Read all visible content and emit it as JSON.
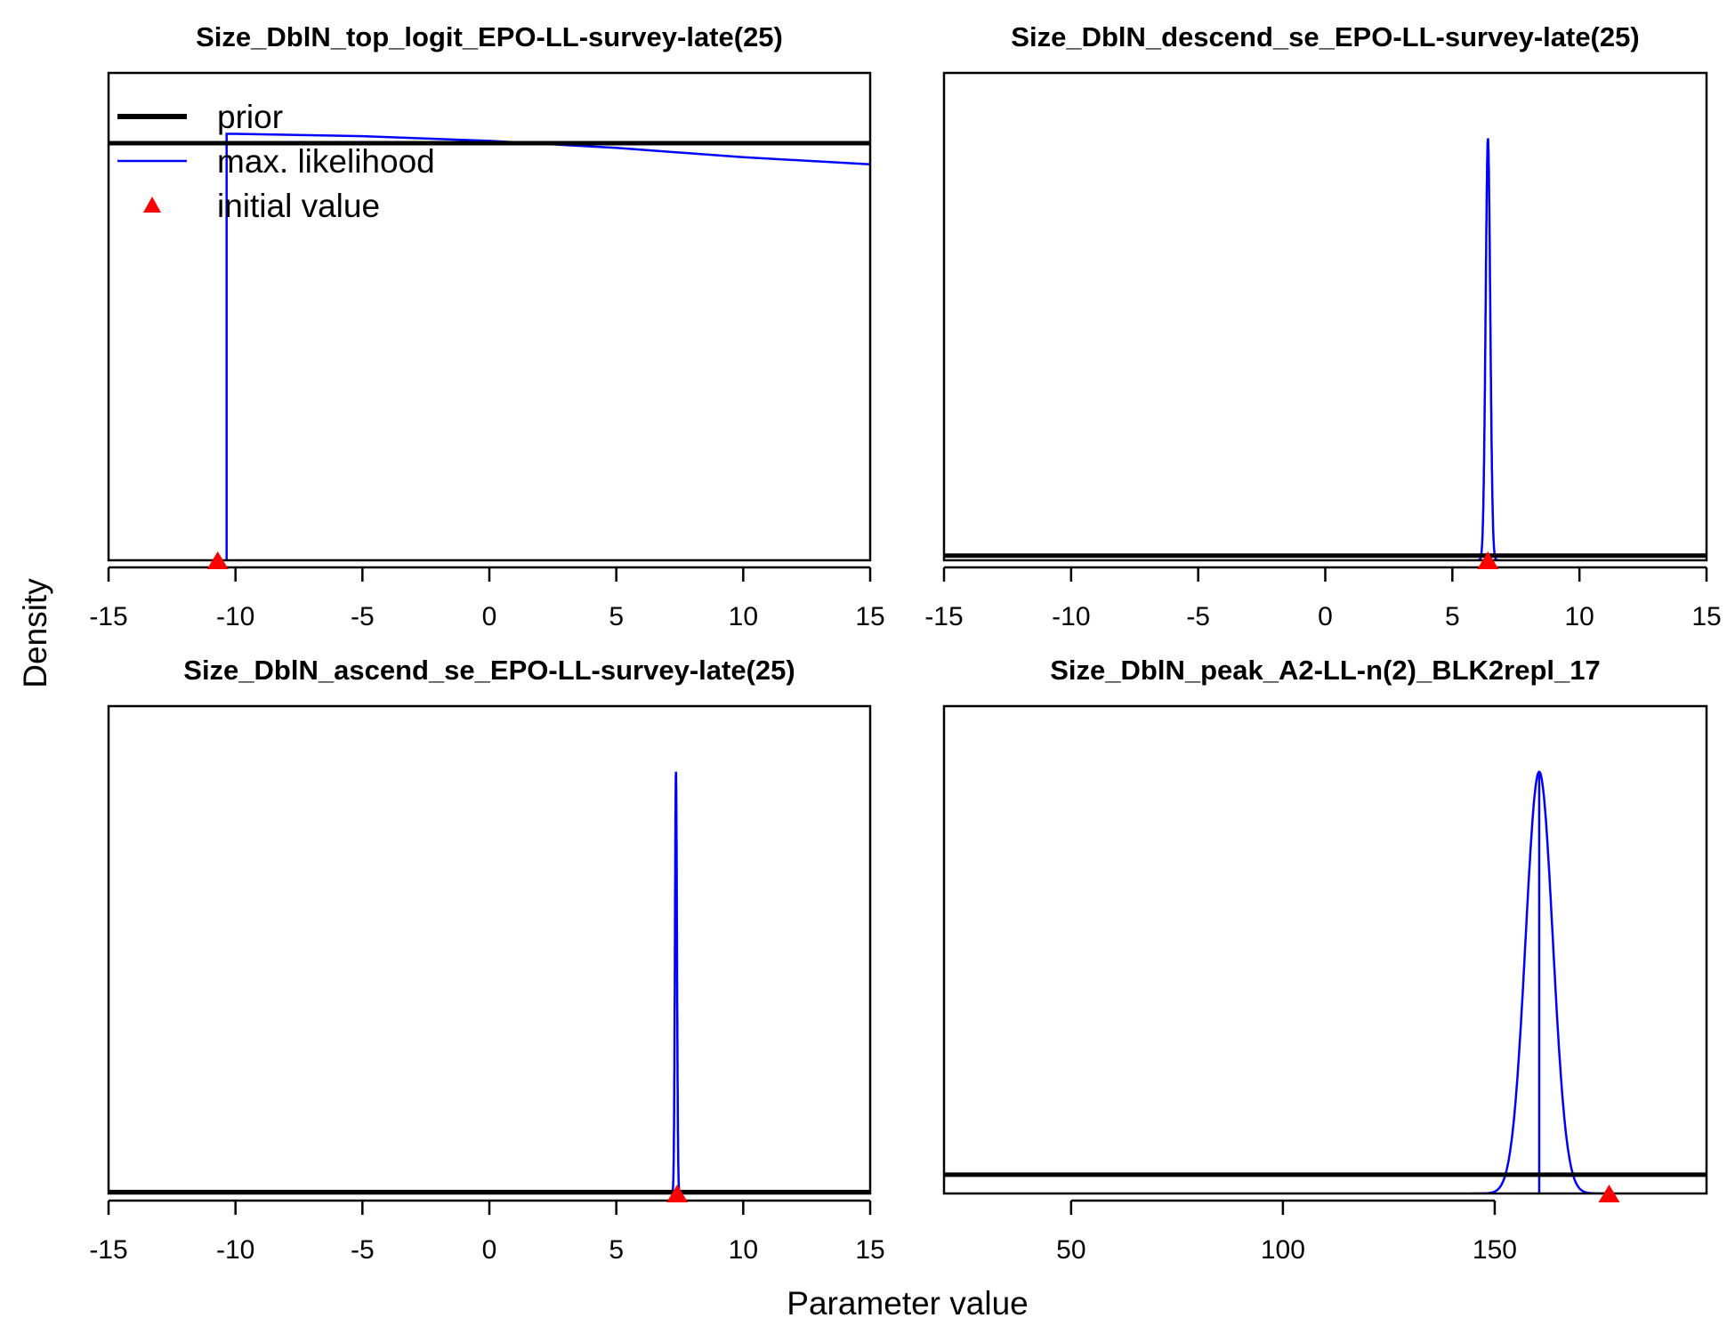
{
  "figure": {
    "ylabel": "Density",
    "xlabel": "Parameter value",
    "legend": {
      "position": "top-left",
      "entries": [
        {
          "label": "prior",
          "symbol": "line",
          "color": "#000000"
        },
        {
          "label": "max. likelihood",
          "symbol": "line",
          "color": "#0000ff"
        },
        {
          "label": "initial value",
          "symbol": "triangle",
          "color": "#ff0000"
        }
      ]
    },
    "colors": {
      "prior": "#000000",
      "mle": "#0000ff",
      "initial": "#ff0000"
    }
  },
  "chart_data": [
    {
      "type": "line",
      "title": "Size_DblN_top_logit_EPO-LL-survey-late(25)",
      "xlim": [
        -15,
        15
      ],
      "ticks": [
        -15,
        -10,
        -5,
        0,
        5,
        10,
        15
      ],
      "tick_labels": [
        "-15",
        "-10",
        "-5",
        "0",
        "5",
        "10",
        "15"
      ],
      "ylim": [
        0,
        1.04
      ],
      "prior": {
        "kind": "points",
        "x": [
          -15,
          0,
          15
        ],
        "y": [
          0.89,
          0.89,
          0.89
        ]
      },
      "mle": {
        "kind": "wide",
        "x": [
          -10.35,
          -10.0,
          -5,
          0,
          5,
          10,
          15
        ],
        "y": [
          0.91,
          0.91,
          0.905,
          0.895,
          0.88,
          0.86,
          0.845
        ],
        "drop_to_zero_at": -10.35
      },
      "initial_value": -10.7
    },
    {
      "type": "line",
      "title": "Size_DblN_descend_se_EPO-LL-survey-late(25)",
      "xlim": [
        -15,
        15
      ],
      "ticks": [
        -15,
        -10,
        -5,
        0,
        5,
        10,
        15
      ],
      "tick_labels": [
        "-15",
        "-10",
        "-5",
        "0",
        "5",
        "10",
        "15"
      ],
      "ylim": [
        0,
        1.04
      ],
      "prior": {
        "kind": "points",
        "x": [
          -15,
          15
        ],
        "y": [
          0.01,
          0.01
        ]
      },
      "mle": {
        "kind": "normal",
        "mean": 6.4,
        "sd": 0.09,
        "peak": 0.9,
        "vline": false
      },
      "initial_value": 6.4
    },
    {
      "type": "line",
      "title": "Size_DblN_ascend_se_EPO-LL-survey-late(25)",
      "xlim": [
        -15,
        15
      ],
      "ticks": [
        -15,
        -10,
        -5,
        0,
        5,
        10,
        15
      ],
      "tick_labels": [
        "-15",
        "-10",
        "-5",
        "0",
        "5",
        "10",
        "15"
      ],
      "ylim": [
        0,
        1.04
      ],
      "prior": {
        "kind": "points",
        "x": [
          -15,
          15
        ],
        "y": [
          0.003,
          0.003
        ]
      },
      "mle": {
        "kind": "normal",
        "mean": 7.35,
        "sd": 0.04,
        "peak": 0.9,
        "vline": false
      },
      "initial_value": 7.4
    },
    {
      "type": "line",
      "title": "Size_DblN_peak_A2-LL-n(2)_BLK2repl_17",
      "xlim": [
        20,
        200
      ],
      "ticks": [
        50,
        100,
        150
      ],
      "tick_labels": [
        "50",
        "100",
        "150"
      ],
      "ylim": [
        0,
        1.04
      ],
      "prior": {
        "kind": "points",
        "x": [
          20,
          200
        ],
        "y": [
          0.04,
          0.04
        ]
      },
      "mle": {
        "kind": "normal",
        "mean": 160.5,
        "sd": 3.2,
        "peak": 0.9,
        "vline": true
      },
      "initial_value": 177
    }
  ]
}
